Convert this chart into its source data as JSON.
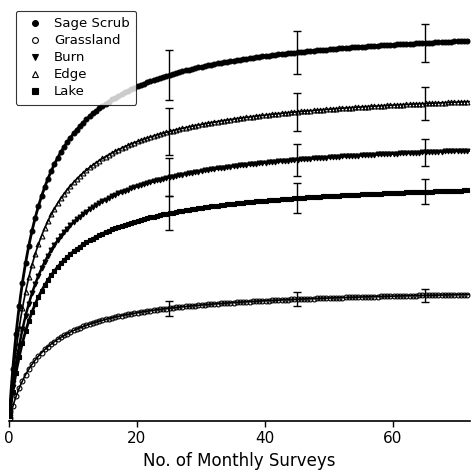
{
  "xlabel": "No. of Monthly Surveys",
  "xlim": [
    0,
    72
  ],
  "xticks": [
    0,
    20,
    40,
    60
  ],
  "legend_order": [
    "Sage Scrub",
    "Grassland",
    "Burn",
    "Edge",
    "Lake"
  ],
  "curve_params": {
    "Sage Scrub": {
      "smax": 95,
      "half": 4.0
    },
    "Grassland": {
      "smax": 32,
      "half": 5.0
    },
    "Burn": {
      "smax": 68,
      "half": 4.5
    },
    "Edge": {
      "smax": 80,
      "half": 4.2
    },
    "Lake": {
      "smax": 58,
      "half": 4.5
    }
  },
  "series_style": {
    "Sage Scrub": {
      "marker": "o",
      "fillstyle": "full",
      "lw": 2.0,
      "ms": 3.5,
      "mew": 0.8,
      "markevery": 2
    },
    "Grassland": {
      "marker": "o",
      "fillstyle": "none",
      "lw": 1.2,
      "ms": 3.5,
      "mew": 0.8,
      "markevery": 2
    },
    "Burn": {
      "marker": "v",
      "fillstyle": "full",
      "lw": 1.8,
      "ms": 3.5,
      "mew": 0.8,
      "markevery": 2
    },
    "Edge": {
      "marker": "^",
      "fillstyle": "none",
      "lw": 1.2,
      "ms": 3.5,
      "mew": 0.8,
      "markevery": 2
    },
    "Lake": {
      "marker": "s",
      "fillstyle": "full",
      "lw": 2.0,
      "ms": 3.2,
      "mew": 0.8,
      "markevery": 2
    }
  },
  "error_positions": {
    "Sage Scrub": {
      "x": [
        25,
        45,
        65
      ],
      "yerr": [
        6.0,
        5.0,
        4.5
      ]
    },
    "Grassland": {
      "x": [
        25,
        45,
        65
      ],
      "yerr": [
        1.8,
        1.6,
        1.5
      ]
    },
    "Burn": {
      "x": [
        25,
        45,
        65
      ],
      "yerr": [
        4.5,
        3.8,
        3.2
      ]
    },
    "Edge": {
      "x": [
        25,
        45,
        65
      ],
      "yerr": [
        5.5,
        4.5,
        3.8
      ]
    },
    "Lake": {
      "x": [
        25,
        45,
        65
      ],
      "yerr": [
        4.0,
        3.5,
        3.0
      ]
    }
  }
}
